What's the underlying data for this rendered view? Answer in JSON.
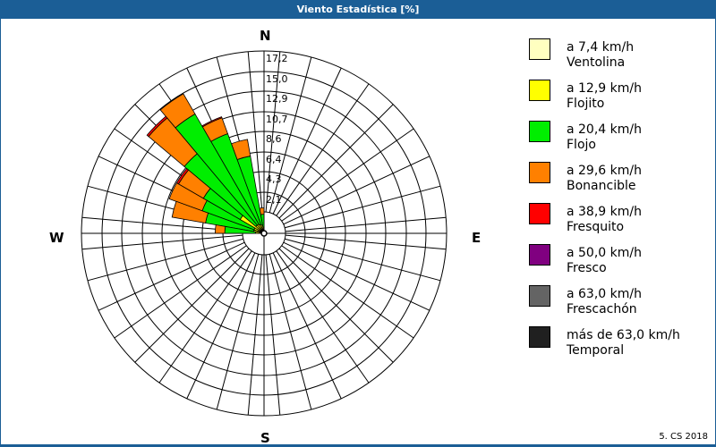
{
  "window": {
    "title": "Viento Estadística [%]"
  },
  "compass": {
    "n": "N",
    "e": "E",
    "s": "S",
    "w": "W"
  },
  "ring_labels": [
    "2,1",
    "4,3",
    "6,4",
    "8,6",
    "10,7",
    "12,9",
    "15,0",
    "17,2"
  ],
  "legend": [
    {
      "range": "a 7,4 km/h",
      "name": "Ventolina",
      "color": "#ffffc0"
    },
    {
      "range": "a 12,9 km/h",
      "name": "Flojito",
      "color": "#ffff00"
    },
    {
      "range": "a 20,4 km/h",
      "name": "Flojo",
      "color": "#00ee00"
    },
    {
      "range": "a 29,6 km/h",
      "name": "Bonancible",
      "color": "#ff8000"
    },
    {
      "range": "a 38,9 km/h",
      "name": "Fresquito",
      "color": "#ff0000"
    },
    {
      "range": "a 50,0 km/h",
      "name": "Fresco",
      "color": "#800080"
    },
    {
      "range": "a 63,0 km/h",
      "name": "Frescachón",
      "color": "#646464"
    },
    {
      "range": "más de 63,0 km/h",
      "name": "Temporal",
      "color": "#202020"
    }
  ],
  "copyright": "5. CS 2018",
  "chart_data": {
    "type": "polar-bar (wind rose, stacked)",
    "title": "Viento Estadística [%]",
    "radial_axis": {
      "max": 17.2,
      "ticks": [
        2.1,
        4.3,
        6.4,
        8.6,
        10.7,
        12.9,
        15.0,
        17.2
      ],
      "unit": "%"
    },
    "sector_width_deg": 10,
    "series_order": [
      "Ventolina",
      "Flojito",
      "Flojo",
      "Bonancible",
      "Fresquito"
    ],
    "petals": [
      {
        "dir_deg": 355,
        "cumulative": [
          0.3,
          0.6,
          1.8,
          2.4,
          2.4
        ]
      },
      {
        "dir_deg": 345,
        "cumulative": [
          0.3,
          0.8,
          7.4,
          9.0,
          9.0
        ]
      },
      {
        "dir_deg": 335,
        "cumulative": [
          0.3,
          0.9,
          10.0,
          11.6,
          11.7
        ]
      },
      {
        "dir_deg": 325,
        "cumulative": [
          0.3,
          1.0,
          13.0,
          15.2,
          15.2
        ]
      },
      {
        "dir_deg": 315,
        "cumulative": [
          0.3,
          1.0,
          9.8,
          14.2,
          14.4
        ]
      },
      {
        "dir_deg": 305,
        "cumulative": [
          0.3,
          2.6,
          6.6,
          9.3,
          9.5
        ]
      },
      {
        "dir_deg": 295,
        "cumulative": [
          0.3,
          1.0,
          6.2,
          9.5,
          9.5
        ]
      },
      {
        "dir_deg": 285,
        "cumulative": [
          0.3,
          1.0,
          5.6,
          8.8,
          8.8
        ]
      },
      {
        "dir_deg": 275,
        "cumulative": [
          0.3,
          0.8,
          3.7,
          4.6,
          4.6
        ]
      }
    ]
  }
}
